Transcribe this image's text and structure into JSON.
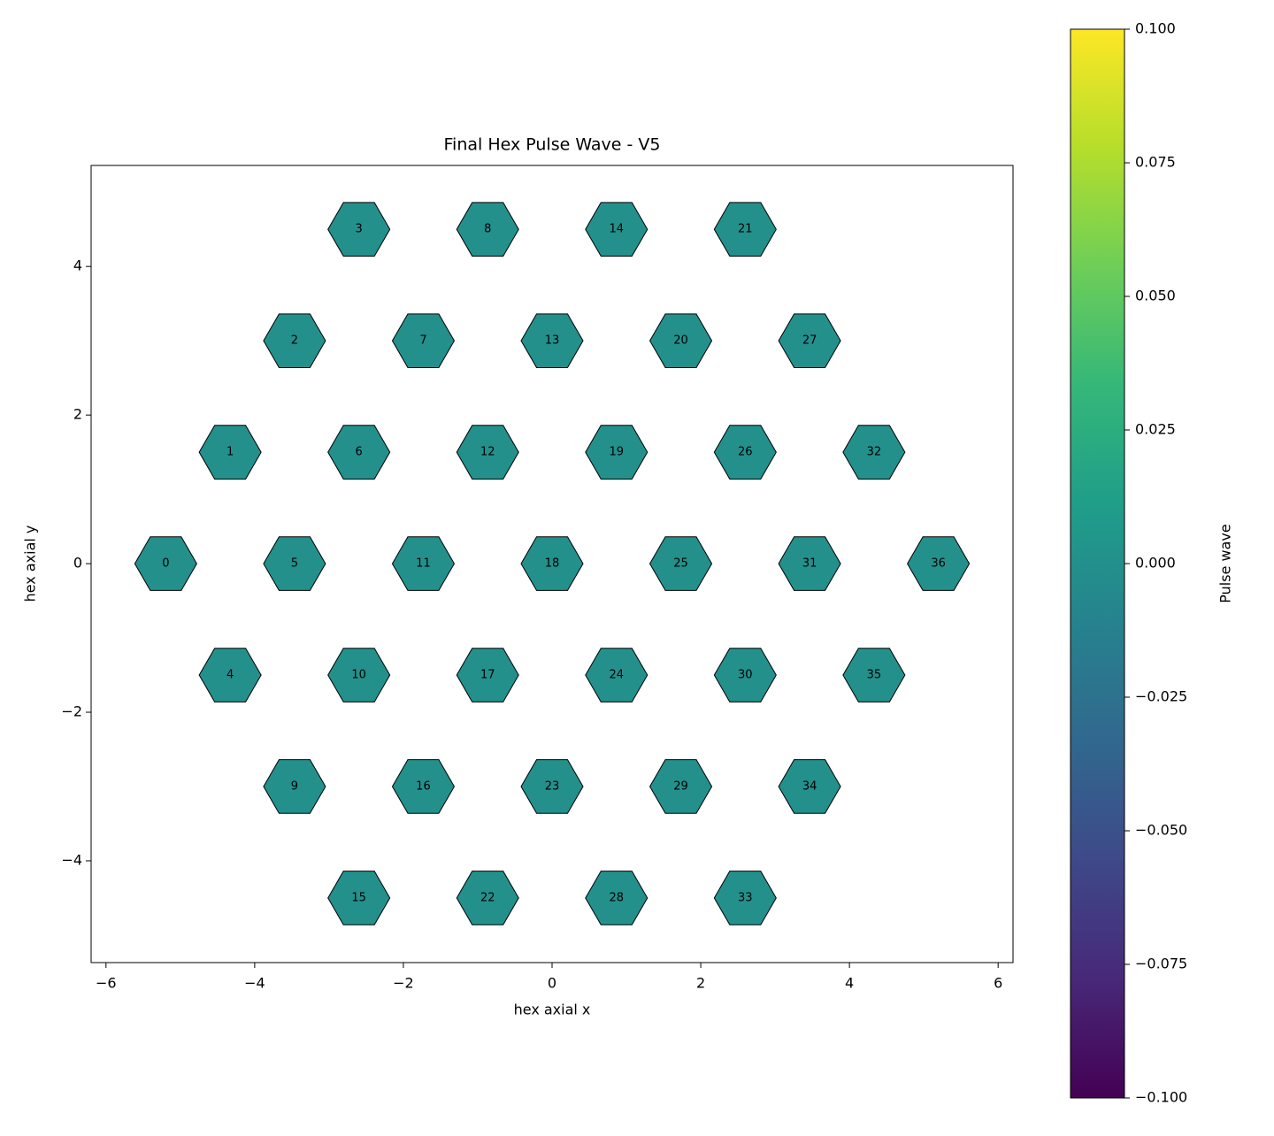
{
  "chart_data": {
    "type": "scatter",
    "marker": "hexagon",
    "colormap": "viridis",
    "title": "Final Hex Pulse Wave - V5",
    "xlabel": "hex axial x",
    "ylabel": "hex axial y",
    "xlim": [
      -6.2,
      6.2
    ],
    "ylim": [
      -5.37,
      5.36
    ],
    "xticks": [
      {
        "value": -6,
        "label": "−6"
      },
      {
        "value": -4,
        "label": "−4"
      },
      {
        "value": -2,
        "label": "−2"
      },
      0,
      2,
      4,
      6
    ],
    "yticks": [
      {
        "value": -4,
        "label": "−4"
      },
      {
        "value": -2,
        "label": "−2"
      },
      0,
      2,
      4
    ],
    "labels": [
      "0",
      "1",
      "2",
      "3",
      "4",
      "5",
      "6",
      "7",
      "8",
      "9",
      "10",
      "11",
      "12",
      "13",
      "14",
      "15",
      "16",
      "17",
      "18",
      "19",
      "20",
      "21",
      "22",
      "23",
      "24",
      "25",
      "26",
      "27",
      "28",
      "29",
      "30",
      "31",
      "32",
      "33",
      "34",
      "35",
      "36"
    ],
    "x": [
      -5.196,
      -4.33,
      -3.464,
      -2.598,
      -4.33,
      -3.464,
      -2.598,
      -1.732,
      -0.866,
      -3.464,
      -2.598,
      -1.732,
      -0.866,
      0,
      0.866,
      -2.598,
      -1.732,
      -0.866,
      0,
      0.866,
      1.732,
      2.598,
      -0.866,
      0,
      0.866,
      1.732,
      2.598,
      3.464,
      0.866,
      1.732,
      2.598,
      3.464,
      4.33,
      2.598,
      3.464,
      4.33,
      5.196
    ],
    "y": [
      0,
      1.5,
      3,
      4.5,
      -1.5,
      0,
      1.5,
      3,
      4.5,
      -3,
      -1.5,
      0,
      1.5,
      3,
      4.5,
      -4.5,
      -3,
      -1.5,
      0,
      1.5,
      3,
      4.5,
      -4.5,
      -3,
      -1.5,
      0,
      1.5,
      3,
      -4.5,
      -3,
      -1.5,
      0,
      1.5,
      -4.5,
      -3,
      -1.5,
      0
    ],
    "values": [
      0,
      0,
      0,
      0,
      0,
      0,
      0,
      0,
      0,
      0,
      0,
      0,
      0,
      0,
      0,
      0,
      0,
      0,
      0,
      0,
      0,
      0,
      0,
      0,
      0,
      0,
      0,
      0,
      0,
      0,
      0,
      0,
      0,
      0,
      0,
      0,
      0
    ],
    "colorbar": {
      "label": "Pulse wave",
      "lim": [
        -0.1,
        0.1
      ],
      "ticks": [
        {
          "value": -0.1,
          "label": "−0.100"
        },
        {
          "value": -0.075,
          "label": "−0.075"
        },
        {
          "value": -0.05,
          "label": "−0.050"
        },
        {
          "value": -0.025,
          "label": "−0.025"
        },
        {
          "value": 0,
          "label": "0.000"
        },
        {
          "value": 0.025,
          "label": "0.025"
        },
        {
          "value": 0.05,
          "label": "0.050"
        },
        {
          "value": 0.075,
          "label": "0.075"
        },
        {
          "value": 0.1,
          "label": "0.100"
        }
      ]
    }
  }
}
